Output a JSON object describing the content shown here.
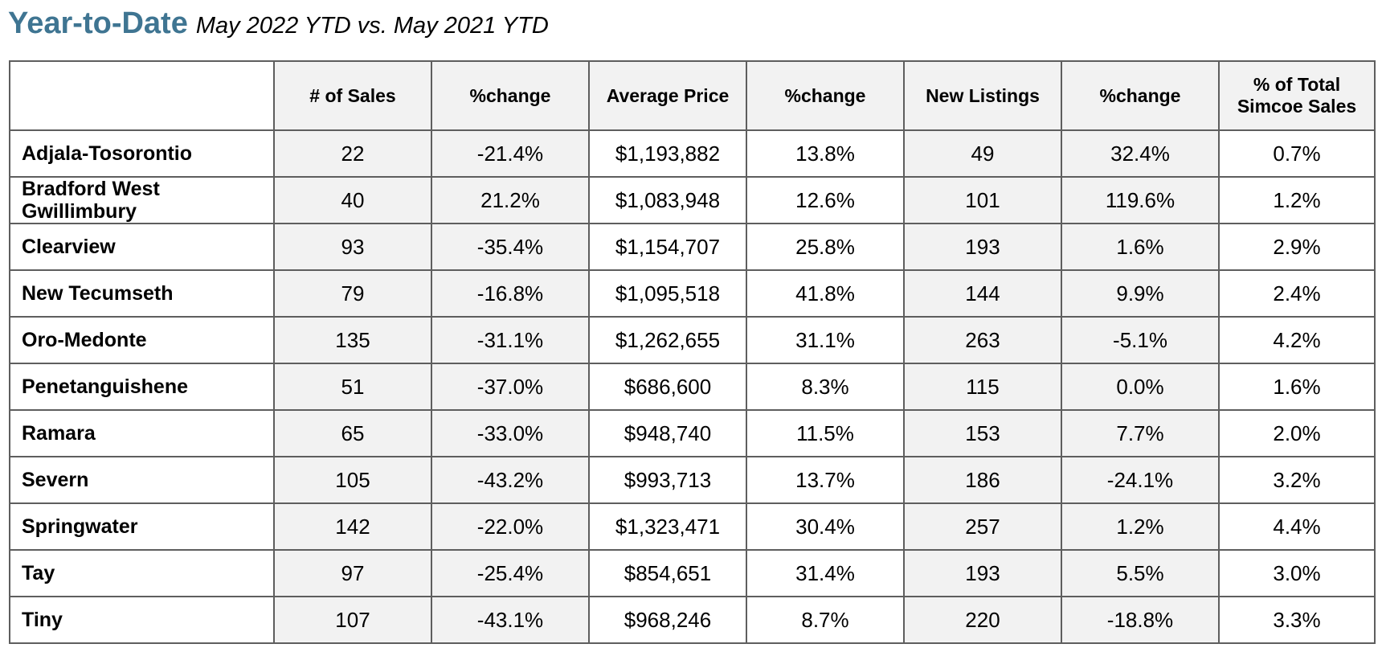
{
  "title": {
    "main": "Year-to-Date",
    "subtitle": "May 2022 YTD vs. May 2021 YTD"
  },
  "colors": {
    "title_accent": "#3f7592",
    "shaded_cell": "#f2f2f2",
    "border": "#5e5e5e"
  },
  "table": {
    "headers": {
      "area": "",
      "sales": "# of Sales",
      "sales_change": "%change",
      "avg_price": "Average Price",
      "price_change": "%change",
      "new_listings": "New Listings",
      "listings_change": "%change",
      "pct_total_line1": "% of Total",
      "pct_total_line2": "Simcoe Sales"
    },
    "rows": [
      {
        "area": "Adjala-Tosorontio",
        "sales": "22",
        "sales_change": "-21.4%",
        "avg_price": "$1,193,882",
        "price_change": "13.8%",
        "new_listings": "49",
        "listings_change": "32.4%",
        "pct_total": "0.7%"
      },
      {
        "area": "Bradford West Gwillimbury",
        "sales": "40",
        "sales_change": "21.2%",
        "avg_price": "$1,083,948",
        "price_change": "12.6%",
        "new_listings": "101",
        "listings_change": "119.6%",
        "pct_total": "1.2%"
      },
      {
        "area": "Clearview",
        "sales": "93",
        "sales_change": "-35.4%",
        "avg_price": "$1,154,707",
        "price_change": "25.8%",
        "new_listings": "193",
        "listings_change": "1.6%",
        "pct_total": "2.9%"
      },
      {
        "area": "New Tecumseth",
        "sales": "79",
        "sales_change": "-16.8%",
        "avg_price": "$1,095,518",
        "price_change": "41.8%",
        "new_listings": "144",
        "listings_change": "9.9%",
        "pct_total": "2.4%"
      },
      {
        "area": "Oro-Medonte",
        "sales": "135",
        "sales_change": "-31.1%",
        "avg_price": "$1,262,655",
        "price_change": "31.1%",
        "new_listings": "263",
        "listings_change": "-5.1%",
        "pct_total": "4.2%"
      },
      {
        "area": "Penetanguishene",
        "sales": "51",
        "sales_change": "-37.0%",
        "avg_price": "$686,600",
        "price_change": "8.3%",
        "new_listings": "115",
        "listings_change": "0.0%",
        "pct_total": "1.6%"
      },
      {
        "area": "Ramara",
        "sales": "65",
        "sales_change": "-33.0%",
        "avg_price": "$948,740",
        "price_change": "11.5%",
        "new_listings": "153",
        "listings_change": "7.7%",
        "pct_total": "2.0%"
      },
      {
        "area": "Severn",
        "sales": "105",
        "sales_change": "-43.2%",
        "avg_price": "$993,713",
        "price_change": "13.7%",
        "new_listings": "186",
        "listings_change": "-24.1%",
        "pct_total": "3.2%"
      },
      {
        "area": "Springwater",
        "sales": "142",
        "sales_change": "-22.0%",
        "avg_price": "$1,323,471",
        "price_change": "30.4%",
        "new_listings": "257",
        "listings_change": "1.2%",
        "pct_total": "4.4%"
      },
      {
        "area": "Tay",
        "sales": "97",
        "sales_change": "-25.4%",
        "avg_price": "$854,651",
        "price_change": "31.4%",
        "new_listings": "193",
        "listings_change": "5.5%",
        "pct_total": "3.0%"
      },
      {
        "area": "Tiny",
        "sales": "107",
        "sales_change": "-43.1%",
        "avg_price": "$968,246",
        "price_change": "8.7%",
        "new_listings": "220",
        "listings_change": "-18.8%",
        "pct_total": "3.3%"
      }
    ]
  }
}
